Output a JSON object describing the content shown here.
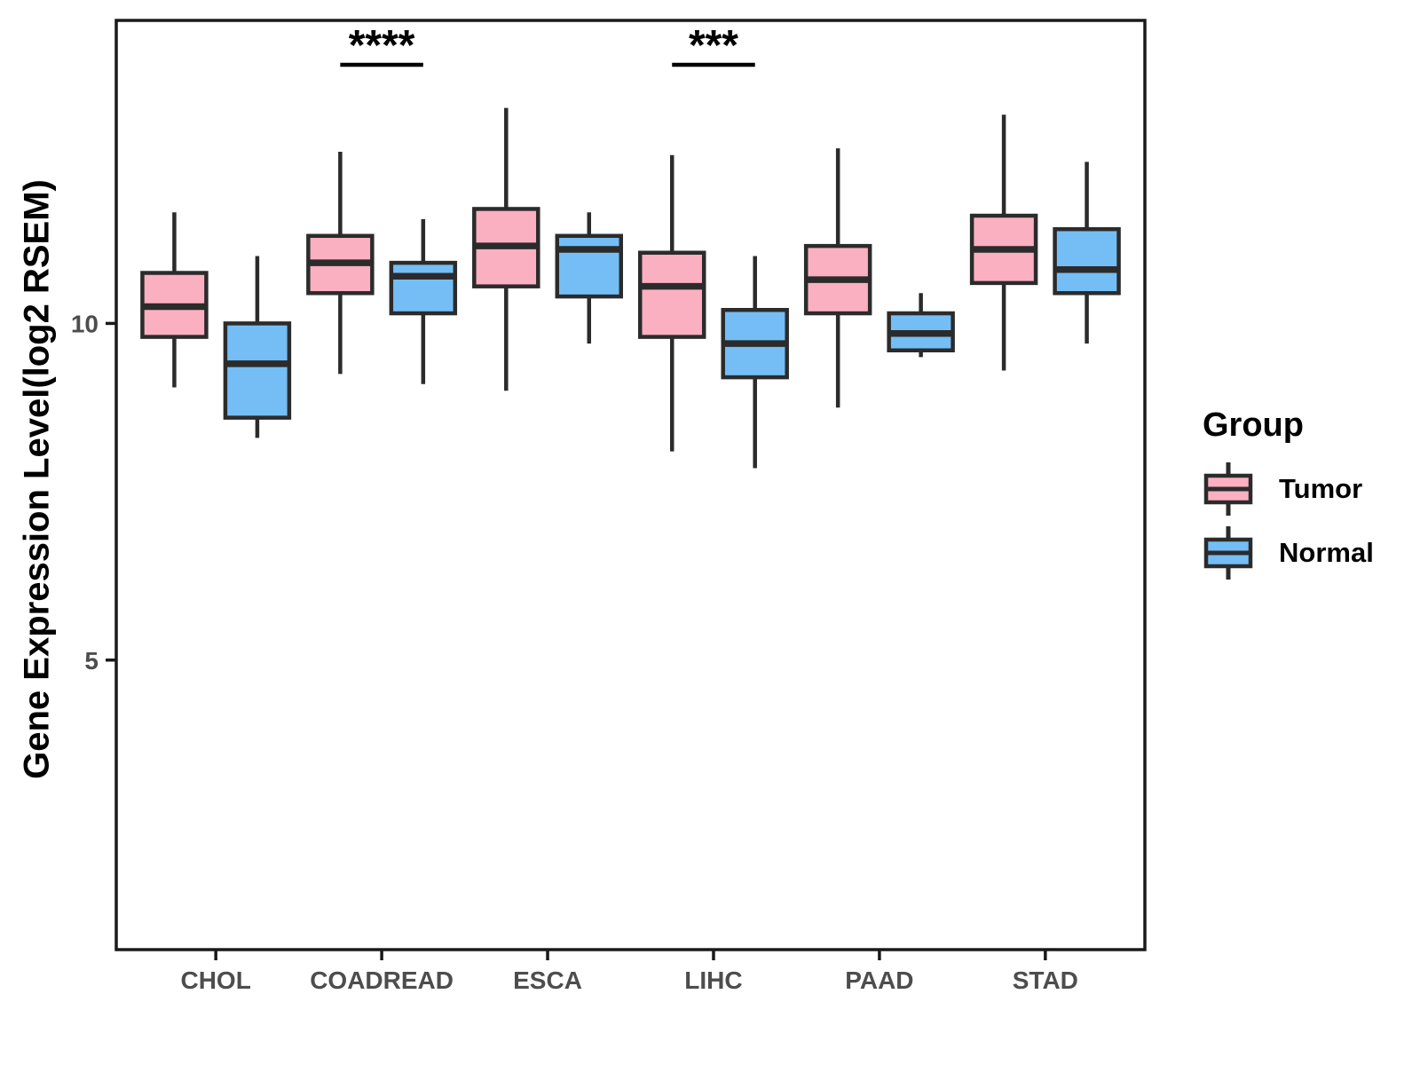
{
  "chart_data": {
    "type": "boxplot",
    "title": "",
    "xlabel": "",
    "ylabel": "Gene Expression Level(log2 RSEM)",
    "ylim": [
      0.7,
      14.5
    ],
    "yticks": [
      5,
      10
    ],
    "grid": false,
    "categories": [
      "CHOL",
      "COADREAD",
      "ESCA",
      "LIHC",
      "PAAD",
      "STAD"
    ],
    "series": [
      {
        "name": "Tumor",
        "color": "#FBB0C2",
        "boxes": [
          {
            "min": 9.05,
            "q1": 9.8,
            "median": 10.25,
            "q3": 10.75,
            "max": 11.65
          },
          {
            "min": 9.25,
            "q1": 10.45,
            "median": 10.9,
            "q3": 11.3,
            "max": 12.55
          },
          {
            "min": 9.0,
            "q1": 10.55,
            "median": 11.15,
            "q3": 11.7,
            "max": 13.2
          },
          {
            "min": 8.1,
            "q1": 9.8,
            "median": 10.55,
            "q3": 11.05,
            "max": 12.5
          },
          {
            "min": 8.75,
            "q1": 10.15,
            "median": 10.65,
            "q3": 11.15,
            "max": 12.6
          },
          {
            "min": 9.3,
            "q1": 10.6,
            "median": 11.1,
            "q3": 11.6,
            "max": 13.1
          }
        ]
      },
      {
        "name": "Normal",
        "color": "#74BEF5",
        "boxes": [
          {
            "min": 8.3,
            "q1": 8.6,
            "median": 9.4,
            "q3": 10.0,
            "max": 11.0
          },
          {
            "min": 9.1,
            "q1": 10.15,
            "median": 10.7,
            "q3": 10.9,
            "max": 11.55
          },
          {
            "min": 9.7,
            "q1": 10.4,
            "median": 11.1,
            "q3": 11.3,
            "max": 11.65
          },
          {
            "min": 7.85,
            "q1": 9.2,
            "median": 9.7,
            "q3": 10.2,
            "max": 11.0
          },
          {
            "min": 9.5,
            "q1": 9.6,
            "median": 9.85,
            "q3": 10.15,
            "max": 10.45
          },
          {
            "min": 9.7,
            "q1": 10.45,
            "median": 10.8,
            "q3": 11.4,
            "max": 12.4
          }
        ]
      }
    ],
    "significance": [
      {
        "category": "COADREAD",
        "label": "****"
      },
      {
        "category": "LIHC",
        "label": "***"
      }
    ],
    "legend": {
      "title": "Group",
      "position": "right"
    },
    "colors": {
      "box_stroke": "#2B2B2B",
      "axis": "#1A1A1A",
      "tick_text": "#4D4D4D"
    }
  }
}
